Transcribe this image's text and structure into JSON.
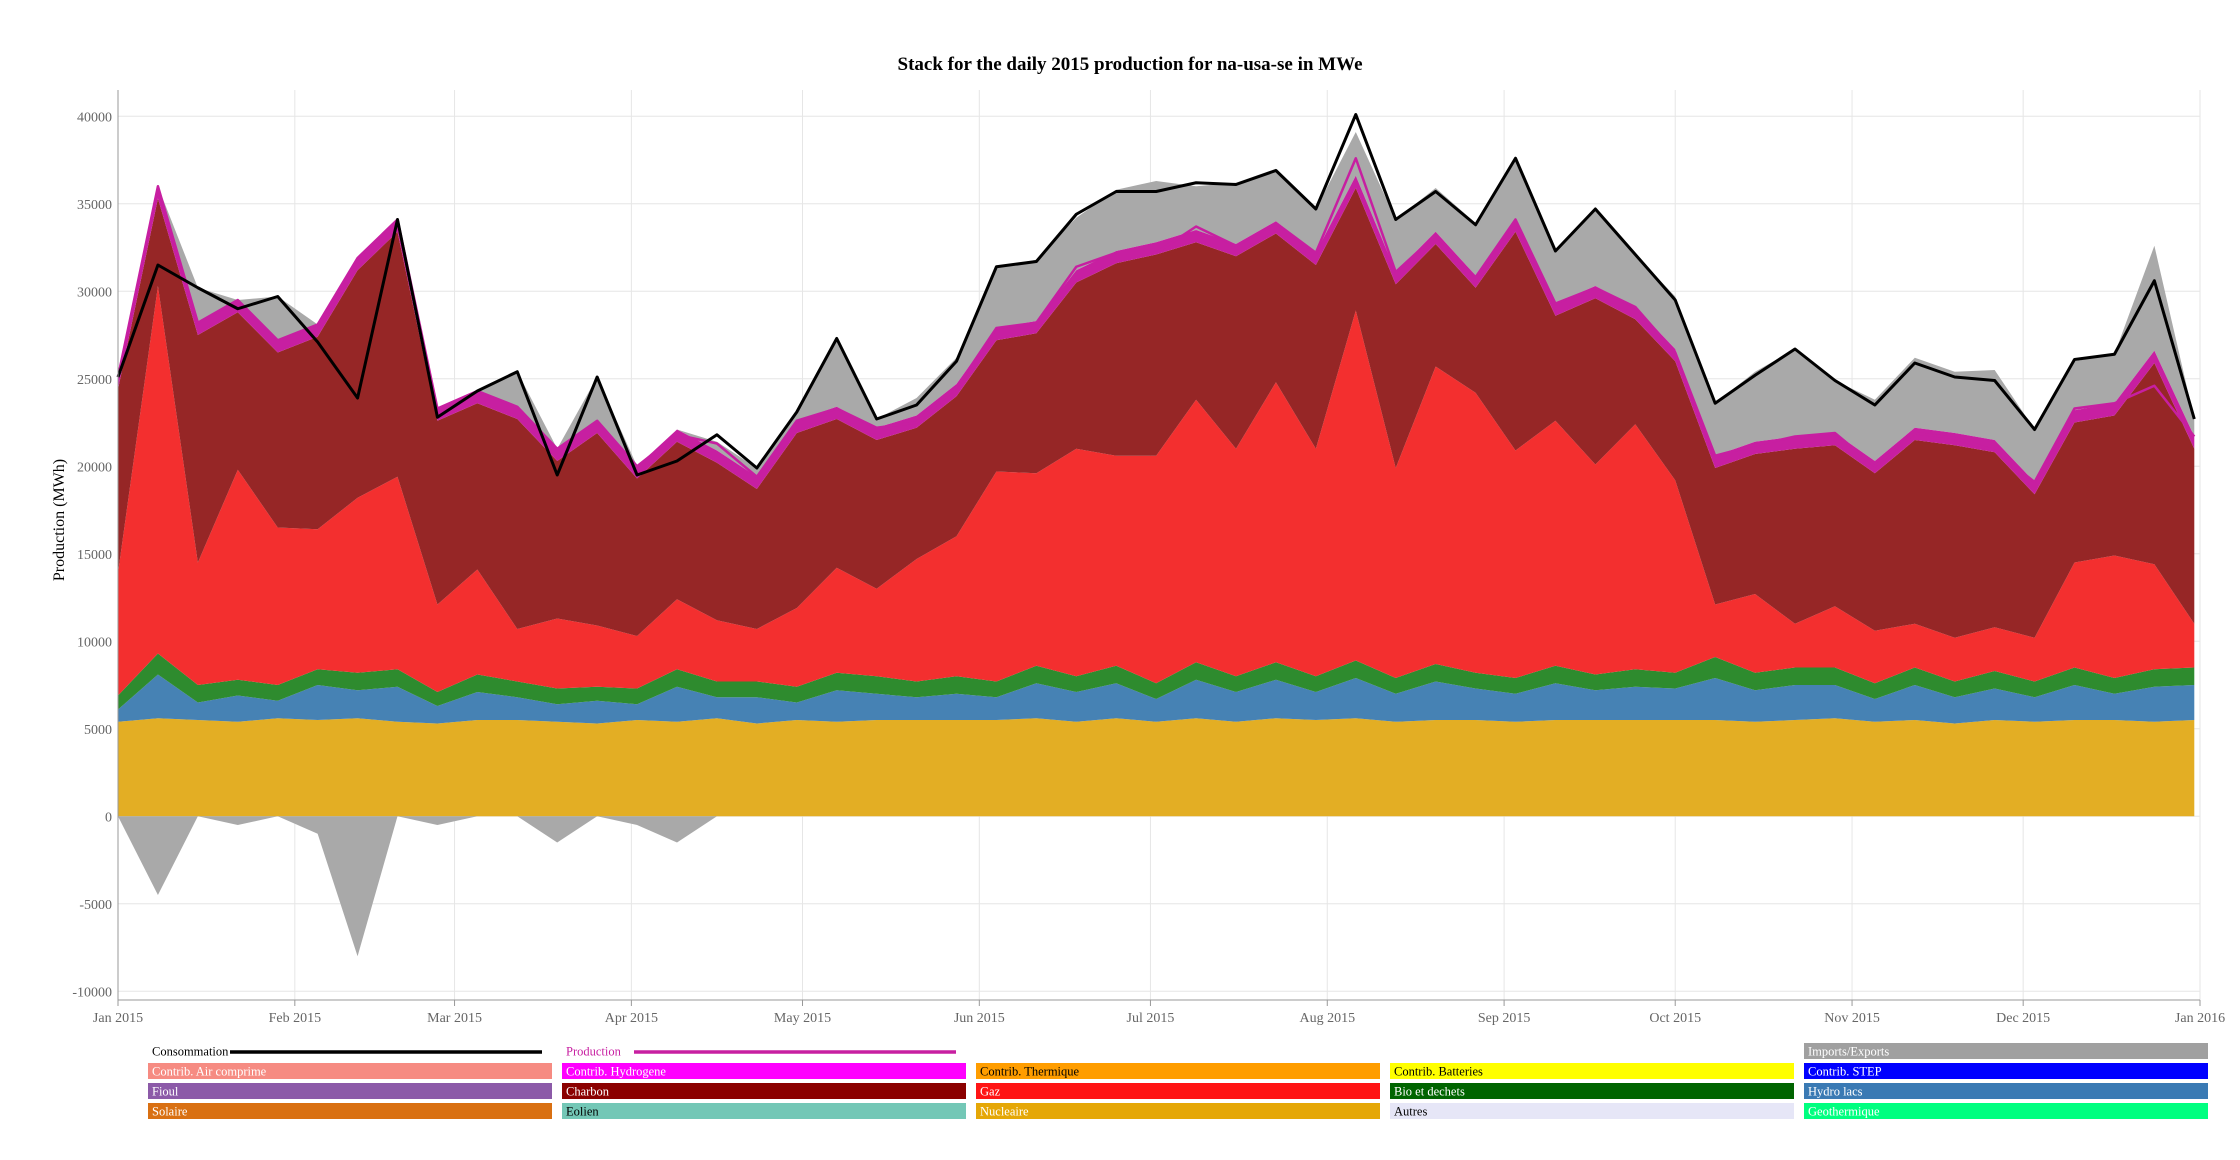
{
  "chart_data": {
    "type": "area",
    "title": "Stack for the daily 2015 production for na-usa-se in MWe",
    "ylabel": "Production (MWh)",
    "xlabel": "",
    "x_range": [
      "2015-01-01",
      "2016-01-01"
    ],
    "ylim": [
      -10500,
      41500
    ],
    "y_ticks": [
      -10000,
      -5000,
      0,
      5000,
      10000,
      15000,
      20000,
      25000,
      30000,
      35000,
      40000
    ],
    "x_ticks": [
      {
        "date": "2015-01-01",
        "label": "Jan 2015"
      },
      {
        "date": "2015-02-01",
        "label": "Feb 2015"
      },
      {
        "date": "2015-03-01",
        "label": "Mar 2015"
      },
      {
        "date": "2015-04-01",
        "label": "Apr 2015"
      },
      {
        "date": "2015-05-01",
        "label": "May 2015"
      },
      {
        "date": "2015-06-01",
        "label": "Jun 2015"
      },
      {
        "date": "2015-07-01",
        "label": "Jul 2015"
      },
      {
        "date": "2015-08-01",
        "label": "Aug 2015"
      },
      {
        "date": "2015-09-01",
        "label": "Sep 2015"
      },
      {
        "date": "2015-10-01",
        "label": "Oct 2015"
      },
      {
        "date": "2015-11-01",
        "label": "Nov 2015"
      },
      {
        "date": "2015-12-01",
        "label": "Dec 2015"
      },
      {
        "date": "2016-01-01",
        "label": "Jan 2016"
      }
    ],
    "grid": true,
    "legend_position": "bottom",
    "dates": [
      "2015-01-01",
      "2015-01-08",
      "2015-01-15",
      "2015-01-22",
      "2015-01-29",
      "2015-02-05",
      "2015-02-12",
      "2015-02-19",
      "2015-02-26",
      "2015-03-05",
      "2015-03-12",
      "2015-03-19",
      "2015-03-26",
      "2015-04-02",
      "2015-04-09",
      "2015-04-16",
      "2015-04-23",
      "2015-04-30",
      "2015-05-07",
      "2015-05-14",
      "2015-05-21",
      "2015-05-28",
      "2015-06-04",
      "2015-06-11",
      "2015-06-18",
      "2015-06-25",
      "2015-07-02",
      "2015-07-09",
      "2015-07-16",
      "2015-07-23",
      "2015-07-30",
      "2015-08-06",
      "2015-08-13",
      "2015-08-20",
      "2015-08-27",
      "2015-09-03",
      "2015-09-10",
      "2015-09-17",
      "2015-09-24",
      "2015-10-01",
      "2015-10-08",
      "2015-10-15",
      "2015-10-22",
      "2015-10-29",
      "2015-11-05",
      "2015-11-12",
      "2015-11-19",
      "2015-11-26",
      "2015-12-03",
      "2015-12-10",
      "2015-12-17",
      "2015-12-24",
      "2015-12-31"
    ],
    "series": [
      {
        "name": "Nucleaire",
        "color": "#E3AE24",
        "values": [
          5400,
          5600,
          5500,
          5400,
          5600,
          5500,
          5600,
          5400,
          5300,
          5500,
          5500,
          5400,
          5300,
          5500,
          5400,
          5600,
          5300,
          5500,
          5400,
          5500,
          5500,
          5500,
          5500,
          5600,
          5400,
          5600,
          5400,
          5600,
          5400,
          5600,
          5500,
          5600,
          5400,
          5500,
          5500,
          5400,
          5500,
          5500,
          5500,
          5500,
          5500,
          5400,
          5500,
          5600,
          5400,
          5500,
          5300,
          5500,
          5400,
          5500,
          5500,
          5400,
          5500
        ]
      },
      {
        "name": "Hydro lacs",
        "color": "#4682B4",
        "values": [
          700,
          2500,
          1000,
          1500,
          1000,
          2000,
          1600,
          2000,
          1000,
          1600,
          1300,
          1000,
          1300,
          900,
          2000,
          1200,
          1500,
          1000,
          1800,
          1500,
          1300,
          1500,
          1300,
          2000,
          1700,
          2000,
          1300,
          2200,
          1700,
          2200,
          1600,
          2300,
          1600,
          2200,
          1800,
          1600,
          2100,
          1700,
          1900,
          1800,
          2400,
          1800,
          2000,
          1900,
          1300,
          2000,
          1500,
          1800,
          1400,
          2000,
          1500,
          2000,
          2000
        ]
      },
      {
        "name": "Eolien",
        "color": "#2E8B2E",
        "values": [
          800,
          1200,
          1000,
          900,
          900,
          900,
          1000,
          1000,
          800,
          1000,
          900,
          900,
          800,
          900,
          1000,
          900,
          900,
          900,
          1000,
          1000,
          900,
          1000,
          900,
          1000,
          900,
          1000,
          900,
          1000,
          900,
          1000,
          900,
          1000,
          900,
          1000,
          900,
          900,
          1000,
          900,
          1000,
          900,
          1200,
          1000,
          1000,
          1000,
          900,
          1000,
          900,
          1000,
          900,
          1000,
          900,
          1000,
          1000
        ]
      },
      {
        "name": "Gaz",
        "color": "#F32F2F",
        "values": [
          7000,
          21000,
          7000,
          12000,
          9000,
          8000,
          10000,
          11000,
          5000,
          6000,
          3000,
          4000,
          3500,
          3000,
          4000,
          3500,
          3000,
          4500,
          6000,
          5000,
          7000,
          8000,
          12000,
          11000,
          13000,
          12000,
          13000,
          15000,
          13000,
          16000,
          13000,
          20000,
          12000,
          17000,
          16000,
          13000,
          14000,
          12000,
          14000,
          11000,
          3000,
          4500,
          2500,
          3500,
          3000,
          2500,
          2500,
          2500,
          2500,
          6000,
          7000,
          6000,
          2500
        ]
      },
      {
        "name": "Charbon",
        "color": "#962626",
        "values": [
          10500,
          5000,
          13000,
          9000,
          10000,
          11000,
          13000,
          14000,
          10500,
          9500,
          12000,
          9000,
          11000,
          9000,
          9000,
          9000,
          8000,
          10000,
          8500,
          8500,
          7500,
          8000,
          7500,
          8000,
          9500,
          11000,
          11500,
          9000,
          11000,
          8500,
          10500,
          7000,
          10500,
          7000,
          6000,
          12500,
          6000,
          9500,
          6000,
          6800,
          7800,
          8000,
          10000,
          9200,
          9000,
          10500,
          11000,
          10000,
          8200,
          8000,
          8000,
          11500,
          10000
        ]
      },
      {
        "name": "Contrib. Hydrogene",
        "color": "#C71FA1",
        "values": [
          700,
          700,
          700,
          700,
          700,
          700,
          700,
          700,
          700,
          700,
          700,
          700,
          700,
          700,
          700,
          700,
          700,
          700,
          700,
          700,
          700,
          700,
          700,
          700,
          700,
          700,
          700,
          700,
          700,
          700,
          700,
          700,
          700,
          700,
          700,
          700,
          700,
          700,
          700,
          700,
          700,
          700,
          700,
          700,
          700,
          700,
          700,
          700,
          700,
          700,
          700,
          700,
          700
        ]
      },
      {
        "name": "Imports/Exports",
        "color": "#A9A9A9",
        "values": [
          0,
          -4500,
          2000,
          -500,
          2500,
          -1000,
          -8000,
          0,
          -500,
          0,
          2000,
          -1500,
          2500,
          -500,
          -1500,
          500,
          500,
          500,
          4000,
          500,
          1000,
          1500,
          3500,
          3500,
          3000,
          3500,
          3500,
          2500,
          3500,
          3000,
          2500,
          2500,
          3000,
          2500,
          3000,
          3500,
          3000,
          4500,
          3000,
          3000,
          3000,
          4000,
          5000,
          3000,
          3500,
          4000,
          3500,
          4000,
          3000,
          2800,
          2800,
          6000,
          1000
        ]
      },
      {
        "name": "Production",
        "color": "#C71FA1",
        "values": [
          25100,
          36000,
          28200,
          29500,
          27200,
          28100,
          31900,
          34100,
          23300,
          24300,
          23400,
          21000,
          22600,
          20000,
          21800,
          21300,
          19400,
          22600,
          23300,
          22200,
          22500,
          24500,
          27900,
          28200,
          31400,
          32200,
          32200,
          33700,
          32600,
          33900,
          32200,
          37600,
          31100,
          33200,
          30800,
          34100,
          29300,
          30200,
          29100,
          26500,
          20600,
          21200,
          21700,
          21900,
          20000,
          21900,
          21600,
          20900,
          19100,
          23300,
          23600,
          24600,
          21700
        ]
      },
      {
        "name": "Consommation",
        "color": "#000000",
        "values": [
          25100,
          31500,
          30200,
          29000,
          29700,
          27100,
          23900,
          34100,
          22800,
          24300,
          25400,
          19500,
          25100,
          19500,
          20300,
          21800,
          19900,
          23100,
          27300,
          22700,
          23500,
          26000,
          31400,
          31700,
          34400,
          35700,
          35700,
          36200,
          36100,
          36900,
          34700,
          40100,
          34100,
          35700,
          33800,
          37600,
          32300,
          34700,
          32100,
          29500,
          23600,
          25200,
          26700,
          24900,
          23500,
          25900,
          25100,
          24900,
          22100,
          26100,
          26400,
          30600,
          22700
        ]
      }
    ]
  },
  "legend": {
    "rows": [
      [
        {
          "label": "Consommation",
          "color": "#000000",
          "kind": "line"
        },
        {
          "label": "Production",
          "color": "#C71FA1",
          "kind": "line"
        },
        {
          "label": "",
          "color": "",
          "kind": "empty"
        },
        {
          "label": "",
          "color": "",
          "kind": "empty"
        },
        {
          "label": "Imports/Exports",
          "color": "#A0A0A0",
          "kind": "box",
          "text_color": "#FFFFFF"
        }
      ],
      [
        {
          "label": "Contrib. Air comprime",
          "color": "#F68B82",
          "kind": "box",
          "text_color": "#FFFFFF"
        },
        {
          "label": "Contrib. Hydrogene",
          "color": "#FF00FF",
          "kind": "box",
          "text_color": "#FFFFFF"
        },
        {
          "label": "Contrib. Thermique",
          "color": "#FF9D00",
          "kind": "box",
          "text_color": "#000000"
        },
        {
          "label": "Contrib. Batteries",
          "color": "#FFFF00",
          "kind": "box",
          "text_color": "#000000"
        },
        {
          "label": "Contrib. STEP",
          "color": "#0000FF",
          "kind": "box",
          "text_color": "#FFFFFF"
        }
      ],
      [
        {
          "label": "Fioul",
          "color": "#8C5AA8",
          "kind": "box",
          "text_color": "#FFFFFF"
        },
        {
          "label": "Charbon",
          "color": "#8B0000",
          "kind": "box",
          "text_color": "#FFFFFF"
        },
        {
          "label": "Gaz",
          "color": "#FF1414",
          "kind": "box",
          "text_color": "#FFFFFF"
        },
        {
          "label": "Bio et dechets",
          "color": "#006400",
          "kind": "box",
          "text_color": "#FFFFFF"
        },
        {
          "label": "Hydro lacs",
          "color": "#3A7AB4",
          "kind": "box",
          "text_color": "#FFFFFF"
        }
      ],
      [
        {
          "label": "Solaire",
          "color": "#D97012",
          "kind": "box",
          "text_color": "#FFFFFF"
        },
        {
          "label": "Eolien",
          "color": "#73C7B6",
          "kind": "box",
          "text_color": "#000000"
        },
        {
          "label": "Nucleaire",
          "color": "#E5A707",
          "kind": "box",
          "text_color": "#FFFFFF"
        },
        {
          "label": "Autres",
          "color": "#E6E6F7",
          "kind": "box",
          "text_color": "#000000"
        },
        {
          "label": "Geothermique",
          "color": "#00FF80",
          "kind": "box",
          "text_color": "#FFFFFF"
        }
      ]
    ]
  }
}
